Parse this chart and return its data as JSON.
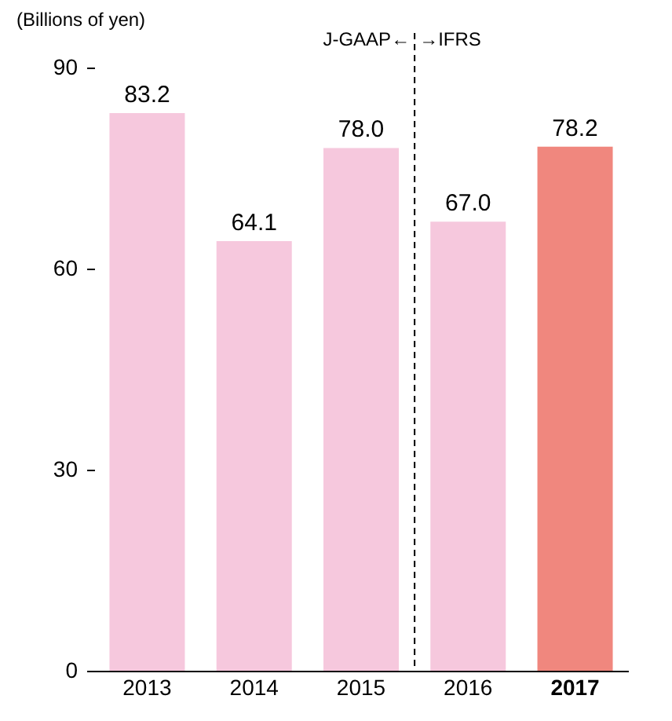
{
  "chart_data": {
    "type": "bar",
    "ylabel": "(Billions of yen)",
    "categories": [
      "2013",
      "2014",
      "2015",
      "2016",
      "2017"
    ],
    "values": [
      83.2,
      64.1,
      78.0,
      67.0,
      78.2
    ],
    "colors": [
      "#f6c8dd",
      "#f6c8dd",
      "#f6c8dd",
      "#f6c8dd",
      "#f0877e"
    ],
    "value_labels": [
      "83.2",
      "64.1",
      "78.0",
      "67.0",
      "78.2"
    ],
    "ylim": [
      0,
      90
    ],
    "yticks": [
      0,
      30,
      60,
      90
    ],
    "annotations": [
      "J-GAAP←",
      "→IFRS"
    ]
  }
}
